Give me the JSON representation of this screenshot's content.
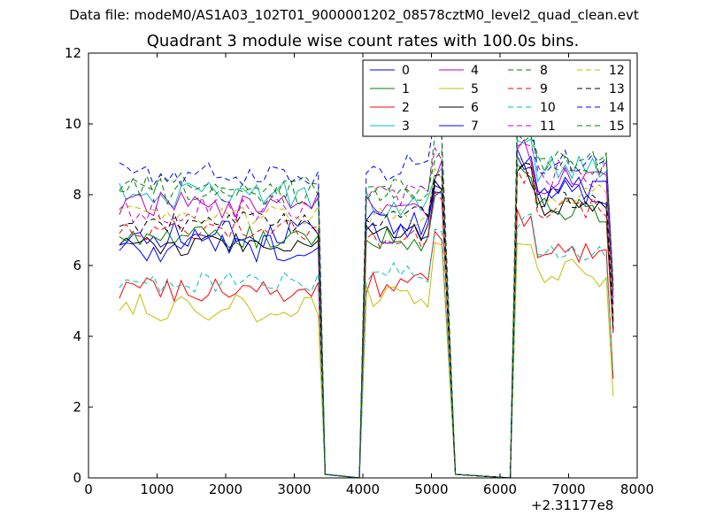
{
  "figure": {
    "suptitle": "Data file: modeM0/AS1A03_102T01_9000001202_08578cztM0_level2_quad_clean.evt"
  },
  "chart_data": {
    "type": "line",
    "title": "Quadrant 3 module wise count rates with 100.0s bins.",
    "xlabel": "",
    "ylabel": "",
    "xlim": [
      0,
      8000
    ],
    "ylim": [
      0,
      12
    ],
    "x_ticks": [
      0,
      1000,
      2000,
      3000,
      4000,
      5000,
      6000,
      7000,
      8000
    ],
    "y_ticks": [
      0,
      2,
      4,
      6,
      8,
      10,
      12
    ],
    "x_offset_label": "+2.31177e8",
    "grid": false,
    "legend": {
      "placement": "top-right",
      "columns": 4
    },
    "segments": [
      [
        450,
        3350
      ],
      [
        4050,
        5150
      ],
      [
        6250,
        7550
      ]
    ],
    "drops": [
      {
        "at": 3350,
        "to": 3450,
        "floor_until": 3950,
        "rise_to": 4050
      },
      {
        "at": 5150,
        "to": 5350,
        "floor_until": 6150,
        "rise_to": 6250
      }
    ],
    "series": [
      {
        "name": "0",
        "color": "#0000ff",
        "dash": "solid",
        "level1": 6.9,
        "level2": 7.0,
        "level3": 8.0,
        "amp": 0.25
      },
      {
        "name": "1",
        "color": "#008000",
        "dash": "solid",
        "level1": 6.8,
        "level2": 6.8,
        "level3": 7.6,
        "amp": 0.25
      },
      {
        "name": "2",
        "color": "#ff0000",
        "dash": "solid",
        "level1": 5.3,
        "level2": 5.5,
        "level3": 6.3,
        "amp": 0.25
      },
      {
        "name": "3",
        "color": "#00bfbf",
        "dash": "solid",
        "level1": 8.0,
        "level2": 7.7,
        "level3": 8.7,
        "amp": 0.25
      },
      {
        "name": "4",
        "color": "#bf00bf",
        "dash": "solid",
        "level1": 7.7,
        "level2": 7.6,
        "level3": 8.4,
        "amp": 0.25
      },
      {
        "name": "5",
        "color": "#bfbf00",
        "dash": "solid",
        "level1": 4.8,
        "level2": 5.2,
        "level3": 5.8,
        "amp": 0.25
      },
      {
        "name": "6",
        "color": "#000000",
        "dash": "solid",
        "level1": 6.6,
        "level2": 6.9,
        "level3": 7.7,
        "amp": 0.2
      },
      {
        "name": "7",
        "color": "#0000ff",
        "dash": "solid",
        "level1": 6.5,
        "level2": 7.2,
        "level3": 8.1,
        "amp": 0.25
      },
      {
        "name": "8",
        "color": "#008000",
        "dash": "dashed",
        "level1": 8.3,
        "level2": 8.0,
        "level3": 8.8,
        "amp": 0.2
      },
      {
        "name": "9",
        "color": "#ff0000",
        "dash": "dashed",
        "level1": 7.0,
        "level2": 6.8,
        "level3": 7.6,
        "amp": 0.2
      },
      {
        "name": "10",
        "color": "#00bfbf",
        "dash": "dashed",
        "level1": 5.5,
        "level2": 5.8,
        "level3": 6.4,
        "amp": 0.2
      },
      {
        "name": "11",
        "color": "#bf00bf",
        "dash": "dashed",
        "level1": 7.6,
        "level2": 7.9,
        "level3": 8.6,
        "amp": 0.25
      },
      {
        "name": "12",
        "color": "#bfbf00",
        "dash": "dashed",
        "level1": 7.4,
        "level2": 7.3,
        "level3": 8.0,
        "amp": 0.2
      },
      {
        "name": "13",
        "color": "#000000",
        "dash": "dashed",
        "level1": 7.2,
        "level2": 7.4,
        "level3": 7.9,
        "amp": 0.2
      },
      {
        "name": "14",
        "color": "#0000ff",
        "dash": "dashed",
        "level1": 8.6,
        "level2": 8.8,
        "level3": 9.0,
        "amp": 0.25
      },
      {
        "name": "15",
        "color": "#008000",
        "dash": "dashed",
        "level1": 8.1,
        "level2": 8.1,
        "level3": 8.9,
        "amp": 0.25
      }
    ]
  }
}
